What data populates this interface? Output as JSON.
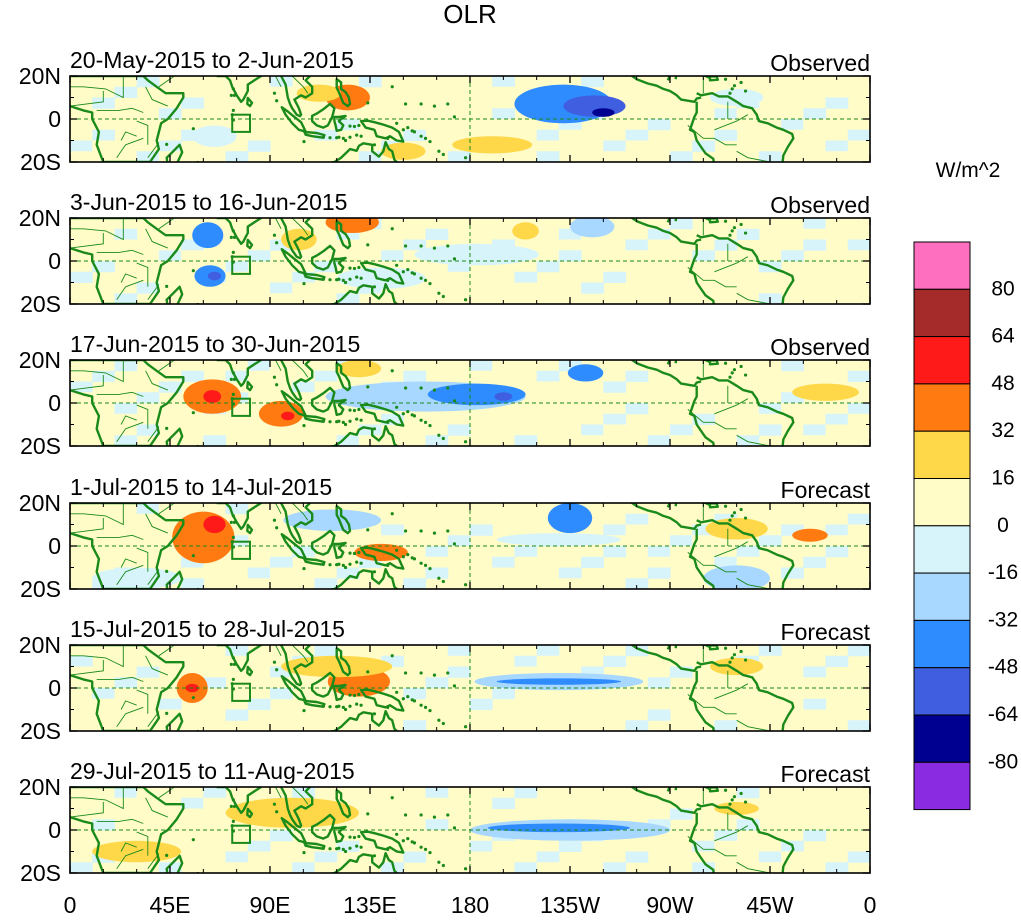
{
  "chart_data": {
    "type": "heatmap",
    "title": "OLR",
    "units_label": "W/m^2",
    "x_ticks": [
      "0",
      "45E",
      "90E",
      "135E",
      "180",
      "135W",
      "90W",
      "45W",
      "0"
    ],
    "y_ticks": [
      "20N",
      "0",
      "20S"
    ],
    "panels": [
      {
        "period": "20-May-2015 to 2-Jun-2015",
        "kind": "Observed",
        "anomalies": [
          {
            "lon": 222,
            "lat": 7,
            "rx": 22,
            "ry": 9,
            "value": -48
          },
          {
            "lon": 236,
            "lat": 6,
            "rx": 14,
            "ry": 5,
            "value": -64
          },
          {
            "lon": 240,
            "lat": 3,
            "rx": 5,
            "ry": 2,
            "value": -80
          },
          {
            "lon": 125,
            "lat": 10,
            "rx": 10,
            "ry": 6,
            "value": 32
          },
          {
            "lon": 112,
            "lat": 12,
            "rx": 10,
            "ry": 4,
            "value": 16
          },
          {
            "lon": 150,
            "lat": -15,
            "rx": 10,
            "ry": 4,
            "value": 16
          },
          {
            "lon": 190,
            "lat": -12,
            "rx": 18,
            "ry": 4,
            "value": 16
          },
          {
            "lon": 65,
            "lat": -8,
            "rx": 10,
            "ry": 5,
            "value": -16
          },
          {
            "lon": 300,
            "lat": 10,
            "rx": 12,
            "ry": 4,
            "value": -16
          }
        ]
      },
      {
        "period": "3-Jun-2015 to 16-Jun-2015",
        "kind": "Observed",
        "anomalies": [
          {
            "lon": 63,
            "lat": -7,
            "rx": 7,
            "ry": 5,
            "value": -48
          },
          {
            "lon": 65,
            "lat": -7,
            "rx": 3,
            "ry": 2,
            "value": -64
          },
          {
            "lon": 62,
            "lat": 12,
            "rx": 7,
            "ry": 6,
            "value": -48
          },
          {
            "lon": 127,
            "lat": 18,
            "rx": 12,
            "ry": 5,
            "value": 32
          },
          {
            "lon": 103,
            "lat": 10,
            "rx": 8,
            "ry": 5,
            "value": 16
          },
          {
            "lon": 183,
            "lat": 3,
            "rx": 28,
            "ry": 5,
            "value": -16
          },
          {
            "lon": 205,
            "lat": 14,
            "rx": 6,
            "ry": 4,
            "value": 16
          },
          {
            "lon": 235,
            "lat": 16,
            "rx": 10,
            "ry": 5,
            "value": -32
          },
          {
            "lon": 140,
            "lat": -8,
            "rx": 20,
            "ry": 5,
            "value": -16
          }
        ]
      },
      {
        "period": "17-Jun-2015 to 30-Jun-2015",
        "kind": "Observed",
        "anomalies": [
          {
            "lon": 64,
            "lat": 3,
            "rx": 13,
            "ry": 8,
            "value": 32
          },
          {
            "lon": 64,
            "lat": 3,
            "rx": 4,
            "ry": 3,
            "value": 48
          },
          {
            "lon": 95,
            "lat": -5,
            "rx": 10,
            "ry": 6,
            "value": 32
          },
          {
            "lon": 98,
            "lat": -6,
            "rx": 3,
            "ry": 2,
            "value": 48
          },
          {
            "lon": 160,
            "lat": 3,
            "rx": 45,
            "ry": 7,
            "value": -32
          },
          {
            "lon": 183,
            "lat": 4,
            "rx": 22,
            "ry": 5,
            "value": -48
          },
          {
            "lon": 195,
            "lat": 3,
            "rx": 4,
            "ry": 2,
            "value": -64
          },
          {
            "lon": 232,
            "lat": 14,
            "rx": 8,
            "ry": 4,
            "value": -48
          },
          {
            "lon": 130,
            "lat": 16,
            "rx": 10,
            "ry": 4,
            "value": 16
          },
          {
            "lon": 340,
            "lat": 5,
            "rx": 15,
            "ry": 4,
            "value": 16
          }
        ]
      },
      {
        "period": "1-Jul-2015 to 14-Jul-2015",
        "kind": "Forecast",
        "anomalies": [
          {
            "lon": 60,
            "lat": 4,
            "rx": 14,
            "ry": 12,
            "value": 32
          },
          {
            "lon": 65,
            "lat": 10,
            "rx": 5,
            "ry": 4,
            "value": 48
          },
          {
            "lon": 140,
            "lat": -3,
            "rx": 12,
            "ry": 4,
            "value": 32
          },
          {
            "lon": 118,
            "lat": 12,
            "rx": 22,
            "ry": 5,
            "value": -32
          },
          {
            "lon": 225,
            "lat": 13,
            "rx": 10,
            "ry": 7,
            "value": -48
          },
          {
            "lon": 220,
            "lat": 3,
            "rx": 28,
            "ry": 3,
            "value": -16
          },
          {
            "lon": 300,
            "lat": 8,
            "rx": 14,
            "ry": 5,
            "value": 16
          },
          {
            "lon": 333,
            "lat": 5,
            "rx": 8,
            "ry": 3,
            "value": 32
          },
          {
            "lon": 300,
            "lat": -15,
            "rx": 15,
            "ry": 6,
            "value": -32
          },
          {
            "lon": 30,
            "lat": -15,
            "rx": 20,
            "ry": 5,
            "value": -16
          }
        ]
      },
      {
        "period": "15-Jul-2015 to 28-Jul-2015",
        "kind": "Forecast",
        "anomalies": [
          {
            "lon": 55,
            "lat": 0,
            "rx": 7,
            "ry": 7,
            "value": 32
          },
          {
            "lon": 55,
            "lat": 0,
            "rx": 3,
            "ry": 2,
            "value": 48
          },
          {
            "lon": 130,
            "lat": 3,
            "rx": 14,
            "ry": 7,
            "value": 32
          },
          {
            "lon": 120,
            "lat": 10,
            "rx": 25,
            "ry": 5,
            "value": 16
          },
          {
            "lon": 220,
            "lat": 3,
            "rx": 38,
            "ry": 4,
            "value": -32
          },
          {
            "lon": 220,
            "lat": 3,
            "rx": 28,
            "ry": 1.5,
            "value": -48
          },
          {
            "lon": 300,
            "lat": 10,
            "rx": 12,
            "ry": 4,
            "value": 16
          }
        ]
      },
      {
        "period": "29-Jul-2015 to 11-Aug-2015",
        "kind": "Forecast",
        "anomalies": [
          {
            "lon": 225,
            "lat": 0,
            "rx": 45,
            "ry": 5,
            "value": -32
          },
          {
            "lon": 220,
            "lat": 1,
            "rx": 32,
            "ry": 2,
            "value": -48
          },
          {
            "lon": 100,
            "lat": 8,
            "rx": 30,
            "ry": 7,
            "value": 16
          },
          {
            "lon": 300,
            "lat": 10,
            "rx": 10,
            "ry": 3,
            "value": 16
          },
          {
            "lon": 30,
            "lat": -10,
            "rx": 20,
            "ry": 5,
            "value": 16
          }
        ]
      }
    ],
    "colorbar": {
      "levels": [
        80,
        64,
        48,
        32,
        16,
        0,
        -16,
        -32,
        -48,
        -64,
        -80
      ],
      "colors": [
        "#ff6fc0",
        "#a52a2a",
        "#ff1a1a",
        "#ff7a10",
        "#ffd84a",
        "#fffcc8",
        "#d6f4fa",
        "#a8d8ff",
        "#2f8cff",
        "#3f5fe0",
        "#000090",
        "#8a2be2"
      ]
    },
    "colors": {
      "coast": "#1a8a1a",
      "frame": "#000000"
    }
  }
}
